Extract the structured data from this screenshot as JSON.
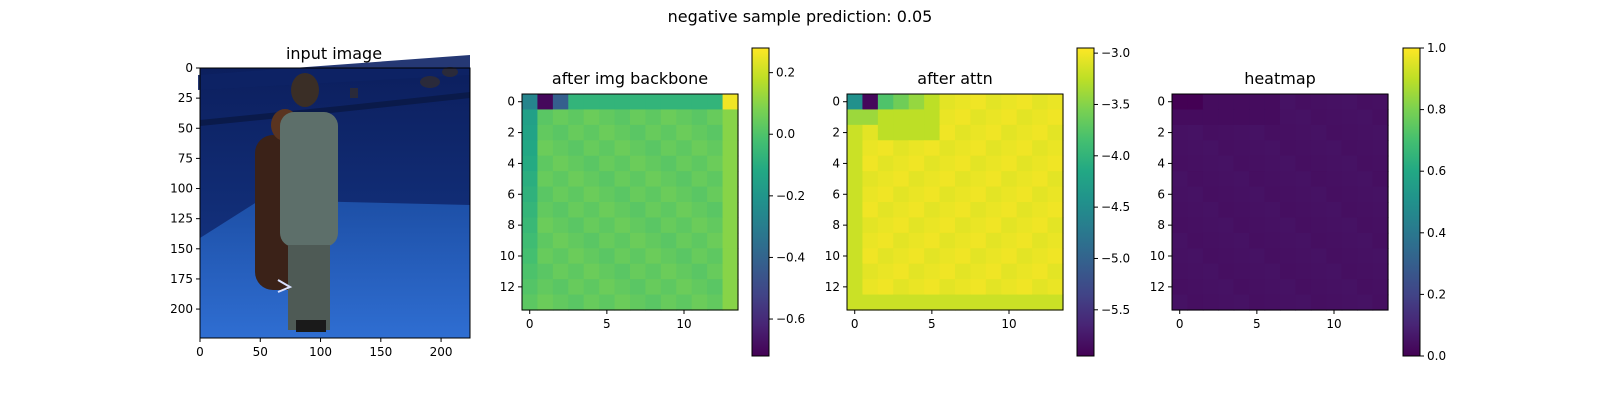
{
  "suptitle": "negative sample     prediction: 0.05",
  "chart_data": [
    {
      "type": "image",
      "title": "input image",
      "xticks": [
        "0",
        "50",
        "100",
        "150",
        "200"
      ],
      "yticks": [
        "0",
        "25",
        "50",
        "75",
        "100",
        "125",
        "150",
        "175",
        "200"
      ],
      "xlim": [
        0,
        224
      ],
      "ylim": [
        224,
        0
      ]
    },
    {
      "type": "heatmap",
      "title": "after img backbone",
      "xticks": [
        "0",
        "5",
        "10"
      ],
      "yticks": [
        "0",
        "2",
        "4",
        "6",
        "8",
        "10",
        "12"
      ],
      "colorbar": {
        "min": -0.72,
        "max": 0.28,
        "ticks": [
          "0.2",
          "0.0",
          "−0.2",
          "−0.4",
          "−0.6"
        ],
        "tick_values": [
          0.2,
          0.0,
          -0.2,
          -0.4,
          -0.6
        ]
      },
      "colormap": "viridis"
    },
    {
      "type": "heatmap",
      "title": "after attn",
      "xticks": [
        "0",
        "5",
        "10"
      ],
      "yticks": [
        "0",
        "2",
        "4",
        "6",
        "8",
        "10",
        "12"
      ],
      "colorbar": {
        "min": -5.95,
        "max": -2.95,
        "ticks": [
          "−3.0",
          "−3.5",
          "−4.0",
          "−4.5",
          "−5.0",
          "−5.5"
        ],
        "tick_values": [
          -3.0,
          -3.5,
          -4.0,
          -4.5,
          -5.0,
          -5.5
        ]
      },
      "colormap": "viridis"
    },
    {
      "type": "heatmap",
      "title": "heatmap",
      "xticks": [
        "0",
        "5",
        "10"
      ],
      "yticks": [
        "0",
        "2",
        "4",
        "6",
        "8",
        "10",
        "12"
      ],
      "colorbar": {
        "min": 0.0,
        "max": 1.0,
        "ticks": [
          "1.0",
          "0.8",
          "0.6",
          "0.4",
          "0.2",
          "0.0"
        ],
        "tick_values": [
          1.0,
          0.8,
          0.6,
          0.4,
          0.2,
          0.0
        ]
      },
      "colormap": "viridis"
    }
  ]
}
